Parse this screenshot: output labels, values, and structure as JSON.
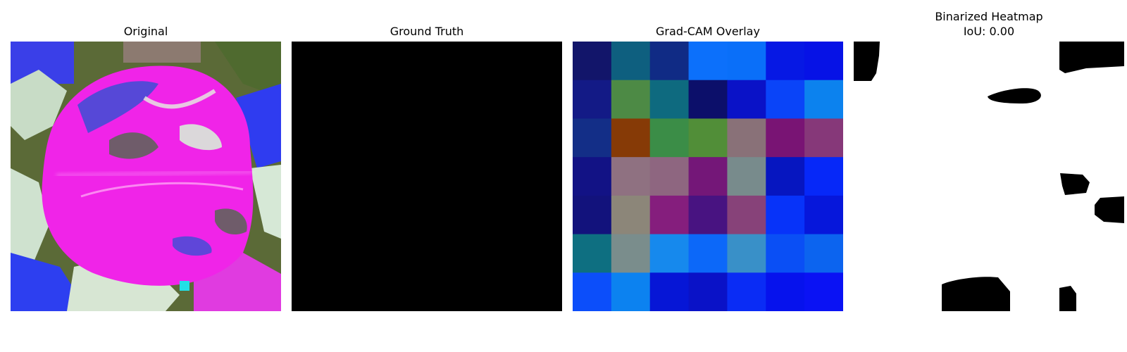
{
  "panels": [
    {
      "id": "original",
      "title": "Original",
      "subtitle": ""
    },
    {
      "id": "ground-truth",
      "title": "Ground Truth",
      "subtitle": ""
    },
    {
      "id": "gradcam",
      "title": "Grad-CAM Overlay",
      "subtitle": ""
    },
    {
      "id": "binarized",
      "title": "Binarized Heatmap",
      "subtitle": "IoU: 0.00"
    }
  ],
  "gradcam_grid": {
    "rows": 7,
    "cols": 7,
    "colors": [
      [
        "#12156a",
        "#0e5f7f",
        "#102b85",
        "#0c70fb",
        "#0a6ff9",
        "#0618e4",
        "#0612e6"
      ],
      [
        "#131a86",
        "#4d8a45",
        "#0e6a7f",
        "#0c0f6a",
        "#0a12c7",
        "#0a44f8",
        "#0c82ee"
      ],
      [
        "#132e87",
        "#863a06",
        "#3b8d47",
        "#518e38",
        "#897178",
        "#791474",
        "#863879"
      ],
      [
        "#121285",
        "#8f7181",
        "#8e6680",
        "#741778",
        "#788b8c",
        "#0616c0",
        "#0628f8"
      ],
      [
        "#12127c",
        "#8c8679",
        "#851e7d",
        "#481381",
        "#874279",
        "#0733f9",
        "#0617db"
      ],
      [
        "#0e6f81",
        "#7a8d8c",
        "#1689ed",
        "#0c68f9",
        "#3990c8",
        "#0a4ff5",
        "#0c64ef"
      ],
      [
        "#0c4efa",
        "#0c82f0",
        "#0616d6",
        "#0a12c7",
        "#0a2cf5",
        "#0612ed",
        "#0a12f4"
      ]
    ]
  },
  "colors": {
    "title_text": "#000000",
    "background": "#ffffff",
    "mask_black": "#000000",
    "mask_white": "#ffffff"
  }
}
